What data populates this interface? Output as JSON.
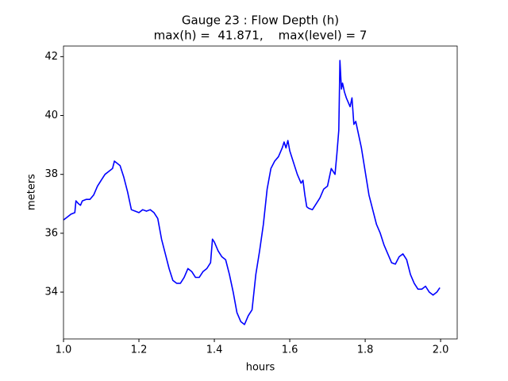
{
  "chart_data": {
    "type": "line",
    "title": [
      "Gauge 23 : Flow Depth (h)",
      "max(h) =  41.871,    max(level) = 7"
    ],
    "x_label": "hours",
    "y_label": "meters",
    "xlim": [
      1.0,
      2.044
    ],
    "ylim": [
      32.41,
      42.36
    ],
    "xticks": [
      {
        "value": 1.0,
        "label": "1.0"
      },
      {
        "value": 1.2,
        "label": "1.2"
      },
      {
        "value": 1.4,
        "label": "1.4"
      },
      {
        "value": 1.6,
        "label": "1.6"
      },
      {
        "value": 1.8,
        "label": "1.8"
      },
      {
        "value": 2.0,
        "label": "2.0"
      }
    ],
    "yticks": [
      34,
      36,
      38,
      40,
      42
    ],
    "grid": false,
    "series": [
      {
        "name": "h",
        "color": "#0000ff",
        "x": [
          1.0,
          1.01,
          1.02,
          1.03,
          1.033,
          1.04,
          1.045,
          1.05,
          1.06,
          1.07,
          1.08,
          1.09,
          1.1,
          1.11,
          1.12,
          1.13,
          1.135,
          1.14,
          1.15,
          1.16,
          1.17,
          1.18,
          1.19,
          1.2,
          1.21,
          1.22,
          1.23,
          1.24,
          1.25,
          1.26,
          1.27,
          1.28,
          1.29,
          1.3,
          1.31,
          1.32,
          1.33,
          1.34,
          1.35,
          1.36,
          1.37,
          1.38,
          1.39,
          1.395,
          1.4,
          1.41,
          1.42,
          1.43,
          1.44,
          1.45,
          1.46,
          1.47,
          1.48,
          1.49,
          1.5,
          1.51,
          1.52,
          1.53,
          1.54,
          1.55,
          1.56,
          1.57,
          1.58,
          1.585,
          1.59,
          1.595,
          1.6,
          1.61,
          1.62,
          1.63,
          1.635,
          1.64,
          1.645,
          1.65,
          1.66,
          1.67,
          1.68,
          1.69,
          1.7,
          1.71,
          1.72,
          1.725,
          1.73,
          1.733,
          1.737,
          1.74,
          1.745,
          1.75,
          1.76,
          1.765,
          1.77,
          1.775,
          1.78,
          1.79,
          1.8,
          1.81,
          1.82,
          1.83,
          1.84,
          1.85,
          1.86,
          1.87,
          1.88,
          1.89,
          1.9,
          1.91,
          1.92,
          1.93,
          1.94,
          1.95,
          1.96,
          1.97,
          1.98,
          1.99,
          1.998
        ],
        "values": [
          36.45,
          36.55,
          36.65,
          36.7,
          37.1,
          37.0,
          36.95,
          37.1,
          37.15,
          37.15,
          37.3,
          37.6,
          37.8,
          38.0,
          38.1,
          38.2,
          38.45,
          38.4,
          38.3,
          37.9,
          37.4,
          36.8,
          36.75,
          36.7,
          36.8,
          36.75,
          36.8,
          36.7,
          36.5,
          35.8,
          35.3,
          34.8,
          34.4,
          34.3,
          34.3,
          34.5,
          34.8,
          34.7,
          34.5,
          34.5,
          34.7,
          34.8,
          35.0,
          35.8,
          35.7,
          35.4,
          35.2,
          35.1,
          34.6,
          34.0,
          33.3,
          33.0,
          32.9,
          33.2,
          33.4,
          34.6,
          35.4,
          36.3,
          37.5,
          38.2,
          38.45,
          38.6,
          38.9,
          39.1,
          38.9,
          39.15,
          38.8,
          38.4,
          38.0,
          37.7,
          37.8,
          37.3,
          36.9,
          36.85,
          36.8,
          37.0,
          37.2,
          37.5,
          37.6,
          38.2,
          38.0,
          38.7,
          39.5,
          41.871,
          40.9,
          41.1,
          40.8,
          40.6,
          40.3,
          40.6,
          39.7,
          39.8,
          39.5,
          38.9,
          38.1,
          37.3,
          36.8,
          36.3,
          36.0,
          35.6,
          35.3,
          35.0,
          34.95,
          35.2,
          35.3,
          35.1,
          34.6,
          34.3,
          34.1,
          34.1,
          34.2,
          34.0,
          33.9,
          34.0,
          34.15
        ]
      }
    ]
  }
}
